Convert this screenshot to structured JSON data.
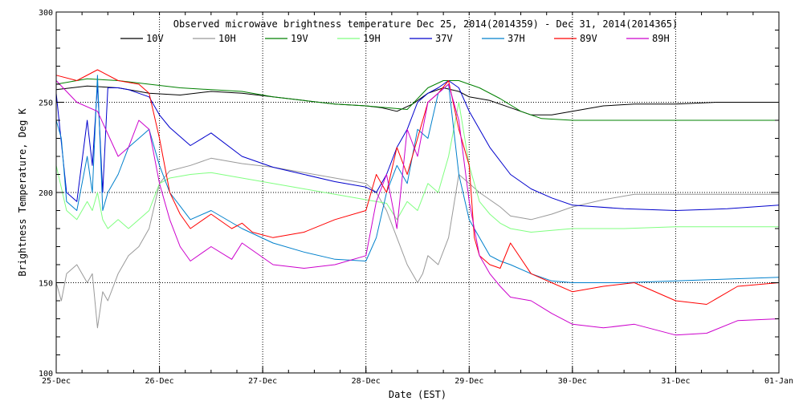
{
  "chart_data": {
    "type": "line",
    "title": "Observed microwave brightness temperature Dec 25, 2014(2014359) - Dec 31, 2014(2014365)",
    "xlabel": "Date (EST)",
    "ylabel": "Brightness Temperature, Deg K",
    "ylim": [
      100,
      300
    ],
    "xlim": [
      0,
      7
    ],
    "x_ticks": [
      {
        "x": 0,
        "label": "25-Dec"
      },
      {
        "x": 1,
        "label": "26-Dec"
      },
      {
        "x": 2,
        "label": "27-Dec"
      },
      {
        "x": 3,
        "label": "28-Dec"
      },
      {
        "x": 4,
        "label": "29-Dec"
      },
      {
        "x": 5,
        "label": "30-Dec"
      },
      {
        "x": 6,
        "label": "31-Dec"
      },
      {
        "x": 7,
        "label": "01-Jan"
      }
    ],
    "y_ticks": [
      100,
      150,
      200,
      250,
      300
    ],
    "grid": "dotted",
    "legend_position": "top",
    "series": [
      {
        "name": "10V",
        "color": "#000000",
        "x": [
          0,
          0.3,
          0.6,
          0.9,
          1.2,
          1.5,
          1.8,
          2.1,
          2.4,
          2.7,
          3.0,
          3.15,
          3.3,
          3.45,
          3.6,
          3.75,
          3.9,
          4.0,
          4.2,
          4.4,
          4.6,
          4.8,
          5.0,
          5.3,
          5.6,
          6.0,
          6.4,
          7.0
        ],
        "y": [
          257,
          259,
          258,
          255,
          254,
          256,
          255,
          253,
          251,
          249,
          248,
          247,
          245,
          249,
          255,
          258,
          256,
          253,
          251,
          247,
          243,
          243,
          245,
          248,
          249,
          249,
          250,
          250
        ]
      },
      {
        "name": "10H",
        "color": "#999999",
        "x": [
          0,
          0.05,
          0.1,
          0.2,
          0.3,
          0.35,
          0.4,
          0.45,
          0.5,
          0.6,
          0.7,
          0.8,
          0.9,
          1.0,
          1.1,
          1.3,
          1.5,
          1.8,
          2.1,
          2.4,
          2.7,
          3.0,
          3.1,
          3.2,
          3.3,
          3.4,
          3.5,
          3.55,
          3.6,
          3.7,
          3.8,
          3.9,
          4.0,
          4.1,
          4.2,
          4.3,
          4.4,
          4.6,
          4.8,
          5.0,
          5.3,
          5.6,
          6.0,
          6.5,
          7.0
        ],
        "y": [
          150,
          140,
          155,
          160,
          150,
          155,
          125,
          145,
          140,
          155,
          165,
          170,
          180,
          205,
          212,
          215,
          219,
          216,
          214,
          211,
          208,
          205,
          200,
          190,
          175,
          160,
          150,
          155,
          165,
          160,
          175,
          210,
          205,
          200,
          196,
          192,
          187,
          185,
          188,
          192,
          196,
          199,
          199,
          199,
          199
        ]
      },
      {
        "name": "19V",
        "color": "#008000",
        "x": [
          0,
          0.3,
          0.6,
          0.9,
          1.2,
          1.5,
          1.8,
          2.1,
          2.4,
          2.7,
          3.0,
          3.2,
          3.4,
          3.6,
          3.75,
          3.9,
          4.1,
          4.3,
          4.5,
          4.7,
          5.0,
          5.5,
          6.0,
          6.5,
          7.0
        ],
        "y": [
          260,
          263,
          262,
          260,
          258,
          257,
          256,
          253,
          251,
          249,
          248,
          247,
          246,
          258,
          262,
          262,
          258,
          252,
          245,
          241,
          240,
          240,
          240,
          240,
          240
        ]
      },
      {
        "name": "19H",
        "color": "#80ff80",
        "x": [
          0,
          0.1,
          0.2,
          0.3,
          0.35,
          0.4,
          0.45,
          0.5,
          0.6,
          0.7,
          0.8,
          0.9,
          1.0,
          1.1,
          1.3,
          1.5,
          1.8,
          2.1,
          2.4,
          2.7,
          3.0,
          3.2,
          3.3,
          3.4,
          3.5,
          3.6,
          3.7,
          3.8,
          3.9,
          4.0,
          4.1,
          4.2,
          4.3,
          4.4,
          4.6,
          4.8,
          5.0,
          5.5,
          6.0,
          6.5,
          7.0
        ],
        "y": [
          215,
          190,
          185,
          195,
          190,
          200,
          185,
          180,
          185,
          180,
          185,
          190,
          205,
          208,
          210,
          211,
          208,
          205,
          202,
          199,
          196,
          194,
          185,
          195,
          190,
          205,
          200,
          220,
          250,
          215,
          195,
          188,
          183,
          180,
          178,
          179,
          180,
          180,
          181,
          181,
          181
        ]
      },
      {
        "name": "37V",
        "color": "#0000cc",
        "x": [
          0,
          0.1,
          0.2,
          0.3,
          0.35,
          0.4,
          0.45,
          0.5,
          0.6,
          0.7,
          0.8,
          0.9,
          1.0,
          1.1,
          1.3,
          1.5,
          1.8,
          2.1,
          2.4,
          2.7,
          3.0,
          3.1,
          3.2,
          3.3,
          3.4,
          3.5,
          3.6,
          3.7,
          3.8,
          3.9,
          4.0,
          4.2,
          4.4,
          4.6,
          4.8,
          5.0,
          5.5,
          6.0,
          6.5,
          7.0
        ],
        "y": [
          255,
          200,
          195,
          240,
          215,
          260,
          200,
          258,
          258,
          257,
          255,
          253,
          243,
          236,
          226,
          233,
          220,
          214,
          210,
          206,
          203,
          200,
          210,
          225,
          235,
          250,
          255,
          258,
          262,
          258,
          245,
          225,
          210,
          202,
          197,
          193,
          191,
          190,
          191,
          193
        ]
      },
      {
        "name": "37H",
        "color": "#0080cc",
        "x": [
          0,
          0.05,
          0.1,
          0.2,
          0.3,
          0.35,
          0.4,
          0.45,
          0.5,
          0.6,
          0.7,
          0.8,
          0.9,
          1.0,
          1.1,
          1.3,
          1.5,
          1.8,
          2.1,
          2.4,
          2.7,
          3.0,
          3.1,
          3.2,
          3.3,
          3.4,
          3.5,
          3.6,
          3.7,
          3.8,
          3.9,
          4.0,
          4.1,
          4.2,
          4.3,
          4.4,
          4.6,
          4.8,
          5.0,
          5.5,
          6.0,
          6.5,
          7.0
        ],
        "y": [
          240,
          230,
          195,
          190,
          220,
          200,
          265,
          190,
          200,
          210,
          225,
          230,
          235,
          215,
          200,
          185,
          190,
          180,
          172,
          167,
          163,
          162,
          175,
          200,
          215,
          205,
          235,
          230,
          255,
          260,
          210,
          185,
          175,
          165,
          162,
          160,
          155,
          151,
          150,
          150,
          151,
          152,
          153
        ]
      },
      {
        "name": "89V",
        "color": "#ff0000",
        "x": [
          0,
          0.2,
          0.4,
          0.6,
          0.8,
          0.9,
          1.0,
          1.1,
          1.2,
          1.3,
          1.5,
          1.7,
          1.8,
          1.9,
          2.1,
          2.4,
          2.7,
          3.0,
          3.1,
          3.2,
          3.3,
          3.4,
          3.5,
          3.6,
          3.7,
          3.8,
          3.9,
          4.0,
          4.05,
          4.1,
          4.2,
          4.3,
          4.4,
          4.6,
          4.8,
          5.0,
          5.3,
          5.6,
          6.0,
          6.3,
          6.6,
          7.0
        ],
        "y": [
          265,
          262,
          268,
          262,
          260,
          255,
          230,
          200,
          188,
          180,
          188,
          180,
          183,
          178,
          175,
          178,
          185,
          190,
          210,
          200,
          225,
          210,
          230,
          250,
          255,
          262,
          235,
          215,
          175,
          165,
          160,
          158,
          172,
          155,
          150,
          145,
          148,
          150,
          140,
          138,
          148,
          150
        ]
      },
      {
        "name": "89H",
        "color": "#cc00cc",
        "x": [
          0,
          0.2,
          0.4,
          0.6,
          0.7,
          0.8,
          0.9,
          1.0,
          1.1,
          1.2,
          1.3,
          1.5,
          1.7,
          1.8,
          1.9,
          2.1,
          2.4,
          2.7,
          3.0,
          3.1,
          3.2,
          3.3,
          3.4,
          3.5,
          3.6,
          3.7,
          3.8,
          3.9,
          4.0,
          4.1,
          4.2,
          4.3,
          4.4,
          4.6,
          4.8,
          5.0,
          5.3,
          5.6,
          6.0,
          6.3,
          6.6,
          7.0
        ],
        "y": [
          262,
          250,
          245,
          220,
          225,
          240,
          235,
          205,
          185,
          170,
          162,
          170,
          163,
          172,
          168,
          160,
          158,
          160,
          165,
          195,
          210,
          180,
          235,
          220,
          250,
          255,
          260,
          240,
          195,
          165,
          155,
          148,
          142,
          140,
          133,
          127,
          125,
          127,
          121,
          122,
          129,
          130
        ]
      }
    ]
  }
}
